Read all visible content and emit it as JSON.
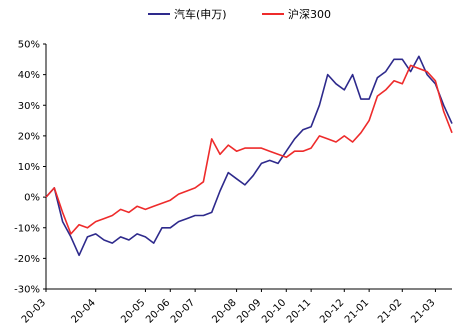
{
  "chart_data": {
    "type": "line",
    "x": [
      "20-03",
      "20-03-05",
      "20-03-10",
      "20-03-15",
      "20-03-20",
      "20-03-25",
      "20-04",
      "20-04-05",
      "20-04-10",
      "20-04-15",
      "20-04-20",
      "20-04-25",
      "20-05",
      "20-05-10",
      "20-05-20",
      "20-06",
      "20-06-10",
      "20-06-20",
      "20-07",
      "20-07-05",
      "20-07-10",
      "20-07-15",
      "20-07-20",
      "20-08",
      "20-08-10",
      "20-08-20",
      "20-09",
      "20-09-10",
      "20-09-20",
      "20-10",
      "20-10-10",
      "20-10-20",
      "20-11",
      "20-11-05",
      "20-11-10",
      "20-11-20",
      "20-12",
      "20-12-10",
      "20-12-20",
      "21-01",
      "21-01-10",
      "21-01-15",
      "21-01-20",
      "21-02",
      "21-02-05",
      "21-02-10",
      "21-02-20",
      "21-03",
      "21-03-05",
      "21-03-10"
    ],
    "x_ticks": [
      "20-03",
      "20-04",
      "20-05",
      "20-06",
      "20-07",
      "20-08",
      "20-09",
      "20-10",
      "20-11",
      "20-12",
      "21-01",
      "21-02",
      "21-03"
    ],
    "y_ticks": [
      "-30%",
      "-20%",
      "-10%",
      "0%",
      "10%",
      "20%",
      "30%",
      "40%",
      "50%"
    ],
    "ylim": [
      -30,
      50
    ],
    "series": [
      {
        "name": "汽车(申万)",
        "color": "#2e2a8c",
        "values": [
          0,
          3,
          -8,
          -13,
          -19,
          -13,
          -12,
          -14,
          -15,
          -13,
          -14,
          -12,
          -13,
          -15,
          -10,
          -10,
          -8,
          -7,
          -6,
          -6,
          -5,
          2,
          8,
          6,
          4,
          7,
          11,
          12,
          11,
          15,
          19,
          22,
          23,
          30,
          40,
          37,
          35,
          40,
          32,
          32,
          39,
          41,
          45,
          45,
          41,
          46,
          40,
          37,
          30,
          24
        ]
      },
      {
        "name": "沪深300",
        "color": "#ee2b2b",
        "values": [
          0,
          3,
          -5,
          -12,
          -9,
          -10,
          -8,
          -7,
          -6,
          -4,
          -5,
          -3,
          -4,
          -3,
          -2,
          -1,
          1,
          2,
          3,
          5,
          19,
          14,
          17,
          15,
          16,
          16,
          16,
          15,
          14,
          13,
          15,
          15,
          16,
          20,
          19,
          18,
          20,
          18,
          21,
          25,
          33,
          35,
          38,
          37,
          43,
          42,
          41,
          38,
          28,
          21
        ]
      }
    ],
    "legend_position": "top-center",
    "grid": false
  }
}
